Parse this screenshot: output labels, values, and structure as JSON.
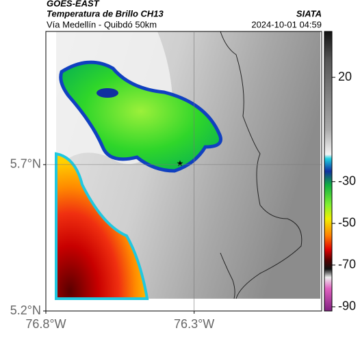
{
  "header": {
    "title": "GOES-EAST",
    "subtitle": "Temperatura de Brillo CH13",
    "route": "Vía Medellín - Quibdó 50km",
    "source": "SIATA",
    "timestamp": "2024-10-01 04:59"
  },
  "map": {
    "xlim": [
      -76.8,
      -75.87
    ],
    "ylim": [
      5.2,
      6.155
    ],
    "xticks": [
      {
        "value": -76.8,
        "label": "76.8°W"
      },
      {
        "value": -76.3,
        "label": "76.3°W"
      }
    ],
    "yticks": [
      {
        "value": 5.7,
        "label": "5.7°N"
      },
      {
        "value": 5.2,
        "label": "5.2°N"
      }
    ],
    "grid": true
  },
  "colorbar": {
    "lim": [
      -92,
      42
    ],
    "ticks": [
      20,
      -30,
      -50,
      -70,
      -90
    ]
  }
}
